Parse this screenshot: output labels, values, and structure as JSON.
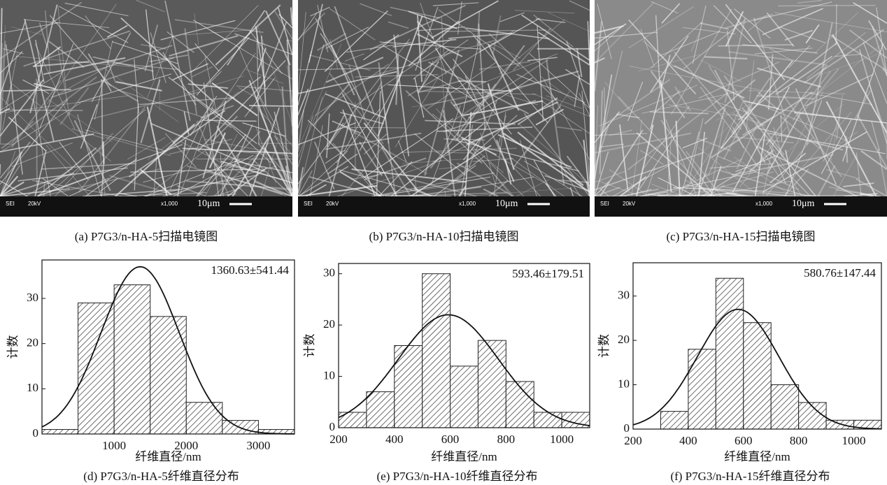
{
  "images": [
    {
      "caption": "(a) P7G3/n-HA-5扫描电镜图",
      "detector": "SEI",
      "voltage": "20kV",
      "magnification": "x1,000",
      "scale": "10μm"
    },
    {
      "caption": "(b) P7G3/n-HA-10扫描电镜图",
      "detector": "SEI",
      "voltage": "20kV",
      "magnification": "x1,000",
      "scale": "10μm"
    },
    {
      "caption": "(c) P7G3/n-HA-15扫描电镜图",
      "detector": "SEI",
      "voltage": "20kV",
      "magnification": "x1,000",
      "scale": "10μm"
    }
  ],
  "chart_data": [
    {
      "type": "histogram",
      "caption": "(d) P7G3/n-HA-5纤维直径分布",
      "xlabel": "纤维直径/nm",
      "ylabel": "计数",
      "annotation": "1360.63±541.44",
      "bins": [
        0,
        500,
        1000,
        1500,
        2000,
        2500,
        3000,
        3500
      ],
      "values": [
        1,
        29,
        33,
        26,
        7,
        3,
        1
      ],
      "xlim": [
        0,
        3500
      ],
      "xticks": [
        1000,
        2000,
        3000
      ],
      "ylim": [
        0,
        38.5
      ],
      "yticks": [
        0,
        10,
        20,
        30
      ],
      "fit": {
        "mean": 1360.63,
        "sd": 541.44,
        "peak": 37
      }
    },
    {
      "type": "histogram",
      "caption": "(e) P7G3/n-HA-10纤维直径分布",
      "xlabel": "纤维直径/nm",
      "ylabel": "计数",
      "annotation": "593.46±179.51",
      "bins": [
        200,
        300,
        400,
        500,
        600,
        700,
        800,
        900,
        1000,
        1100
      ],
      "values": [
        3,
        7,
        16,
        30,
        12,
        17,
        9,
        3,
        3
      ],
      "xlim": [
        200,
        1100
      ],
      "xticks": [
        200,
        400,
        600,
        800,
        1000
      ],
      "ylim": [
        0,
        32
      ],
      "yticks": [
        0,
        10,
        20,
        30
      ],
      "fit": {
        "mean": 593.46,
        "sd": 179.51,
        "peak": 22
      }
    },
    {
      "type": "histogram",
      "caption": "(f) P7G3/n-HA-15纤维直径分布",
      "xlabel": "纤维直径/nm",
      "ylabel": "计数",
      "annotation": "580.76±147.44",
      "bins": [
        300,
        400,
        500,
        600,
        700,
        800,
        900,
        1000,
        1100
      ],
      "values": [
        4,
        18,
        34,
        24,
        10,
        6,
        2,
        2
      ],
      "xlim": [
        200,
        1100
      ],
      "xticks": [
        200,
        400,
        600,
        800,
        1000
      ],
      "ylim": [
        0,
        37.5
      ],
      "yticks": [
        0,
        10,
        20,
        30
      ],
      "fit": {
        "mean": 580.76,
        "sd": 147.44,
        "peak": 27
      }
    }
  ]
}
